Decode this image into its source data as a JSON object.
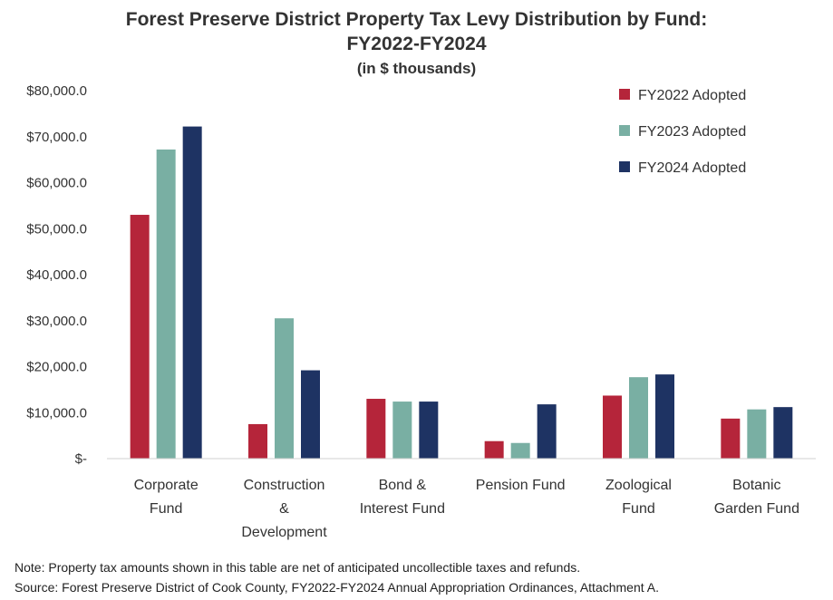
{
  "title_lines": [
    "Forest Preserve District Property Tax Levy Distribution  by Fund:",
    "FY2022-FY2024"
  ],
  "subtitle": "(in $ thousands)",
  "notes": {
    "note": "Note: Property tax amounts shown in this table are net of anticipated uncollectible taxes and refunds.",
    "source": "Source: Forest Preserve District of Cook County,  FY2022-FY2024 Annual Appropriation Ordinances, Attachment A."
  },
  "chart_data": {
    "type": "bar",
    "title": "Forest Preserve District Property Tax Levy Distribution  by Fund: FY2022-FY2024",
    "subtitle": "(in $ thousands)",
    "categories": [
      [
        "Corporate",
        "Fund"
      ],
      [
        "Construction",
        "&",
        "Development"
      ],
      [
        "Bond &",
        "Interest Fund"
      ],
      [
        "Pension Fund"
      ],
      [
        "Zoological",
        "Fund"
      ],
      [
        "Botanic",
        "Garden Fund"
      ]
    ],
    "series": [
      {
        "name": "FY2022 Adopted",
        "color": "#B5253A",
        "values": [
          53000,
          7500,
          13000,
          3800,
          13700,
          8700
        ]
      },
      {
        "name": "FY2023 Adopted",
        "color": "#79AFA3",
        "values": [
          67200,
          30500,
          12400,
          3400,
          17700,
          10700
        ]
      },
      {
        "name": "FY2024 Adopted",
        "color": "#1E3363",
        "values": [
          72200,
          19200,
          12400,
          11800,
          18300,
          11200
        ]
      }
    ],
    "yticks": [
      "$-",
      "$10,000.0",
      "$20,000.0",
      "$30,000.0",
      "$40,000.0",
      "$50,000.0",
      "$60,000.0",
      "$70,000.0",
      "$80,000.0"
    ],
    "ylim": [
      0,
      80000
    ],
    "grid": false,
    "legend_position": "top-right"
  }
}
